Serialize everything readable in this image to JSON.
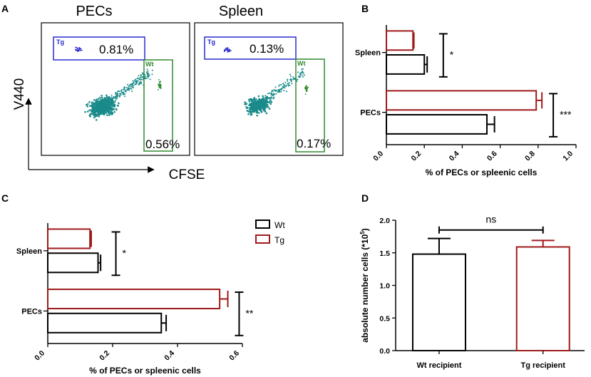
{
  "panel_labels": {
    "a": "A",
    "b": "B",
    "c": "C",
    "d": "D"
  },
  "flow": {
    "y_label": "V440",
    "x_label": "CFSE",
    "plots": [
      {
        "title": "PECs",
        "tg_gate_label": "Tg",
        "tg_percent": "0.81%",
        "wt_gate_label": "Wt",
        "wt_percent": "0.56%"
      },
      {
        "title": "Spleen",
        "tg_gate_label": "Tg",
        "tg_percent": "0.13%",
        "wt_gate_label": "Wt",
        "wt_percent": "0.17%"
      }
    ]
  },
  "colors": {
    "wt": "#000000",
    "tg": "#a01a1a",
    "tg_gate": "#2a2ad0",
    "wt_gate": "#2f8a2f",
    "cells": "#1a8a8a"
  },
  "chart_data": [
    {
      "panel": "B",
      "type": "bar",
      "orientation": "horizontal",
      "categories": [
        "Spleen",
        "PECs"
      ],
      "series": [
        {
          "name": "Tg",
          "values": [
            0.14,
            0.79
          ],
          "errors": [
            0.005,
            0.03
          ]
        },
        {
          "name": "Wt",
          "values": [
            0.2,
            0.53
          ],
          "errors": [
            0.015,
            0.04
          ]
        }
      ],
      "significance": [
        "*",
        "***"
      ],
      "xlabel": "% of PECs or spleenic cells",
      "xlim": [
        0.0,
        1.0
      ],
      "ticks": [
        "0.0",
        "0.2",
        "0.4",
        "0.6",
        "0.8",
        "1.0"
      ]
    },
    {
      "panel": "C",
      "type": "bar",
      "orientation": "horizontal",
      "categories": [
        "Spleen",
        "PECs"
      ],
      "series": [
        {
          "name": "Tg",
          "values": [
            0.13,
            0.53
          ],
          "errors": [
            0.004,
            0.025
          ]
        },
        {
          "name": "Wt",
          "values": [
            0.155,
            0.35
          ],
          "errors": [
            0.008,
            0.015
          ]
        }
      ],
      "significance": [
        "*",
        "**"
      ],
      "xlabel": "% of PECs or spleenic cells",
      "xlim": [
        0.0,
        0.6
      ],
      "ticks": [
        "0.0",
        "0.2",
        "0.4",
        "0.6"
      ],
      "legend": [
        "Wt",
        "Tg"
      ]
    },
    {
      "panel": "D",
      "type": "bar",
      "categories": [
        "Wt recipient",
        "Tg recipient"
      ],
      "values": [
        1.48,
        1.59
      ],
      "errors": [
        0.24,
        0.1
      ],
      "significance": "ns",
      "ylabel": "absolute number cells (*10",
      "ylabel_exp": "5",
      "ylabel_end": ")",
      "ylim": [
        0.0,
        2.0
      ],
      "ticks": [
        "0.0",
        "0.5",
        "1.0",
        "1.5",
        "2.0"
      ]
    }
  ]
}
